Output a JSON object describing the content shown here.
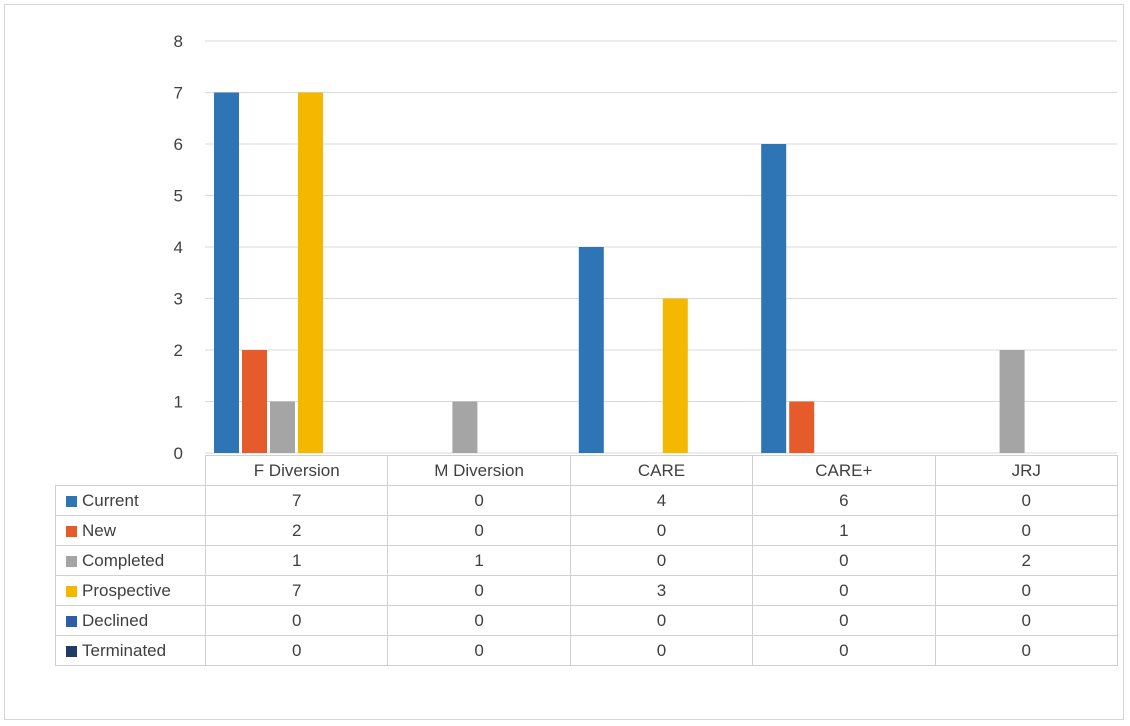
{
  "chart_data": {
    "type": "bar",
    "categories": [
      "F Diversion",
      "M Diversion",
      "CARE",
      "CARE+",
      "JRJ"
    ],
    "ylim": [
      0,
      8
    ],
    "yticks": [
      0,
      1,
      2,
      3,
      4,
      5,
      6,
      7,
      8
    ],
    "grid": true,
    "legend": "data-table",
    "series": [
      {
        "name": "Current",
        "color": "#2e75b6",
        "values": [
          7,
          0,
          4,
          6,
          0
        ]
      },
      {
        "name": "New",
        "color": "#e55b2b",
        "values": [
          2,
          0,
          0,
          1,
          0
        ]
      },
      {
        "name": "Completed",
        "color": "#a5a5a5",
        "values": [
          1,
          1,
          0,
          0,
          2
        ]
      },
      {
        "name": "Prospective",
        "color": "#f5b800",
        "values": [
          7,
          0,
          3,
          0,
          0
        ]
      },
      {
        "name": "Declined",
        "color": "#2f5ea8",
        "values": [
          0,
          0,
          0,
          0,
          0
        ]
      },
      {
        "name": "Terminated",
        "color": "#1f3c64",
        "values": [
          0,
          0,
          0,
          0,
          0
        ]
      }
    ]
  }
}
